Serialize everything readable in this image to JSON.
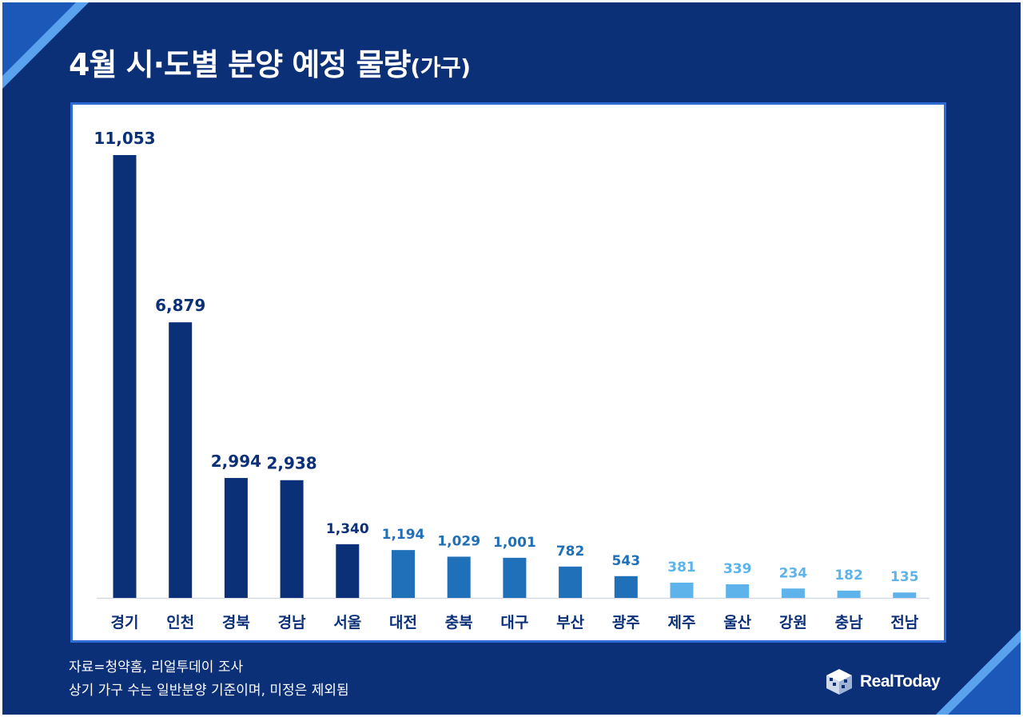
{
  "header": {
    "title": "4월 시·도별 분양 예정 물량",
    "title_unit": "(가구)"
  },
  "colors": {
    "background": "#0b3078",
    "bar_dark": "#0b3078",
    "bar_mid": "#1f70b8",
    "bar_light": "#5db3ea",
    "panel_border": "#2f6bd6",
    "stripe": "#3f8fe0"
  },
  "chart_data": {
    "type": "bar",
    "categories": [
      "경기",
      "인천",
      "경북",
      "경남",
      "서울",
      "대전",
      "충북",
      "대구",
      "부산",
      "광주",
      "제주",
      "울산",
      "강원",
      "충남",
      "전남"
    ],
    "values": [
      11053,
      6879,
      2994,
      2938,
      1340,
      1194,
      1029,
      1001,
      782,
      543,
      381,
      339,
      234,
      182,
      135
    ],
    "value_labels": [
      "11,053",
      "6,879",
      "2,994",
      "2,938",
      "1,340",
      "1,194",
      "1,029",
      "1,001",
      "782",
      "543",
      "381",
      "339",
      "234",
      "182",
      "135"
    ],
    "tiers": [
      "dark",
      "dark",
      "dark",
      "dark",
      "dark",
      "mid",
      "mid",
      "mid",
      "mid",
      "mid",
      "light",
      "light",
      "light",
      "light",
      "light"
    ],
    "ylim": [
      0,
      11053
    ],
    "grid": false,
    "legend": "none"
  },
  "footer": {
    "source": "자료=청약홈, 리얼투데이 조사",
    "note": "상기 가구 수는 일반분양 기준이며, 미정은 제외됨"
  },
  "logo": {
    "icon": "realtoday-cube-logo-icon",
    "text": "RealToday"
  }
}
